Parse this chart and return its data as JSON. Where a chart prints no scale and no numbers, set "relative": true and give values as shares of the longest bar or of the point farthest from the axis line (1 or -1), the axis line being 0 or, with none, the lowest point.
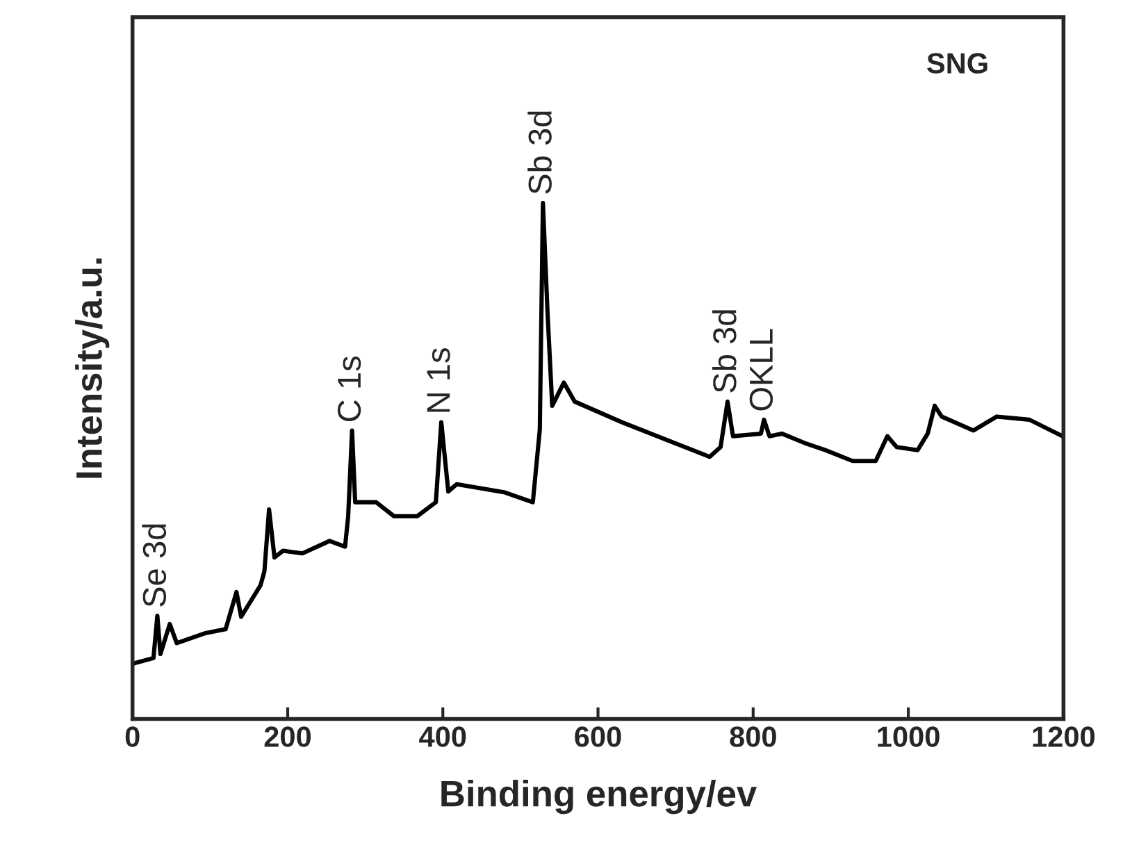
{
  "chart_data": {
    "type": "line",
    "relative": true,
    "xlabel": "Binding energy/ev",
    "ylabel": "Intensity/a.u.",
    "xlim": [
      0,
      1200
    ],
    "xticks": [
      0,
      200,
      400,
      600,
      800,
      1000,
      1200
    ],
    "tick_labels": "x",
    "x": [
      0,
      27,
      32,
      36,
      48,
      57,
      93,
      120,
      134,
      140,
      165,
      170,
      176,
      183,
      194,
      219,
      254,
      274,
      278,
      283,
      287,
      314,
      337,
      367,
      391,
      398,
      407,
      418,
      480,
      516,
      525,
      529,
      535,
      541,
      556,
      570,
      631,
      690,
      744,
      758,
      767,
      774,
      810,
      814,
      821,
      837,
      866,
      893,
      928,
      958,
      973,
      985,
      1012,
      1025,
      1034,
      1043,
      1084,
      1114,
      1156,
      1199
    ],
    "series": [
      {
        "color": "#000000",
        "values": [
          0.107,
          0.118,
          0.2,
          0.126,
          0.184,
          0.147,
          0.166,
          0.174,
          0.246,
          0.198,
          0.259,
          0.286,
          0.406,
          0.313,
          0.326,
          0.321,
          0.345,
          0.334,
          0.393,
          0.559,
          0.42,
          0.42,
          0.393,
          0.393,
          0.42,
          0.575,
          0.441,
          0.455,
          0.439,
          0.42,
          0.561,
          1.0,
          0.786,
          0.607,
          0.652,
          0.615,
          0.575,
          0.54,
          0.508,
          0.527,
          0.615,
          0.548,
          0.553,
          0.58,
          0.548,
          0.553,
          0.535,
          0.521,
          0.5,
          0.5,
          0.548,
          0.527,
          0.521,
          0.553,
          0.607,
          0.586,
          0.559,
          0.586,
          0.58,
          0.548
        ]
      }
    ],
    "annotations": [
      {
        "text": "Se 3d",
        "x": 32,
        "y": 0.2
      },
      {
        "text": "C 1s",
        "x": 283,
        "y": 0.559
      },
      {
        "text": "N 1s",
        "x": 398,
        "y": 0.575
      },
      {
        "text": "Sb 3d",
        "x": 529,
        "y": 1.0
      },
      {
        "text": "Sb 3d",
        "x": 767,
        "y": 0.615
      },
      {
        "text": "OKLL",
        "x": 814,
        "y": 0.58
      },
      "SNG"
    ],
    "grid": false,
    "legend": false,
    "marker": "none",
    "line_style": "solid"
  }
}
